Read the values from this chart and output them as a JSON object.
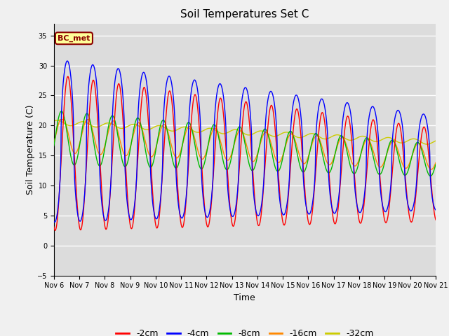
{
  "title": "Soil Temperatures Set C",
  "xlabel": "Time",
  "ylabel": "Soil Temperature (C)",
  "ylim": [
    -5,
    37
  ],
  "yticks": [
    -5,
    0,
    5,
    10,
    15,
    20,
    25,
    30,
    35
  ],
  "annotation": "BC_met",
  "plot_bg_color": "#dcdcdc",
  "fig_bg_color": "#f0f0f0",
  "series_colors": {
    "-2cm": "#ff0000",
    "-4cm": "#0000ff",
    "-8cm": "#00bb00",
    "-16cm": "#ff8800",
    "-32cm": "#cccc00"
  },
  "x_start_day": 6,
  "x_end_day": 21,
  "x_ticks": [
    6,
    7,
    8,
    9,
    10,
    11,
    12,
    13,
    14,
    15,
    16,
    17,
    18,
    19,
    20,
    21
  ],
  "x_tick_labels": [
    "Nov 6",
    "Nov 7",
    "Nov 8",
    "Nov 9",
    "Nov 10",
    "Nov 11",
    "Nov 12",
    "Nov 13",
    "Nov 14",
    "Nov 15",
    "Nov 16",
    "Nov 17",
    "Nov 18",
    "Nov 19",
    "Nov 20",
    "Nov 21"
  ]
}
